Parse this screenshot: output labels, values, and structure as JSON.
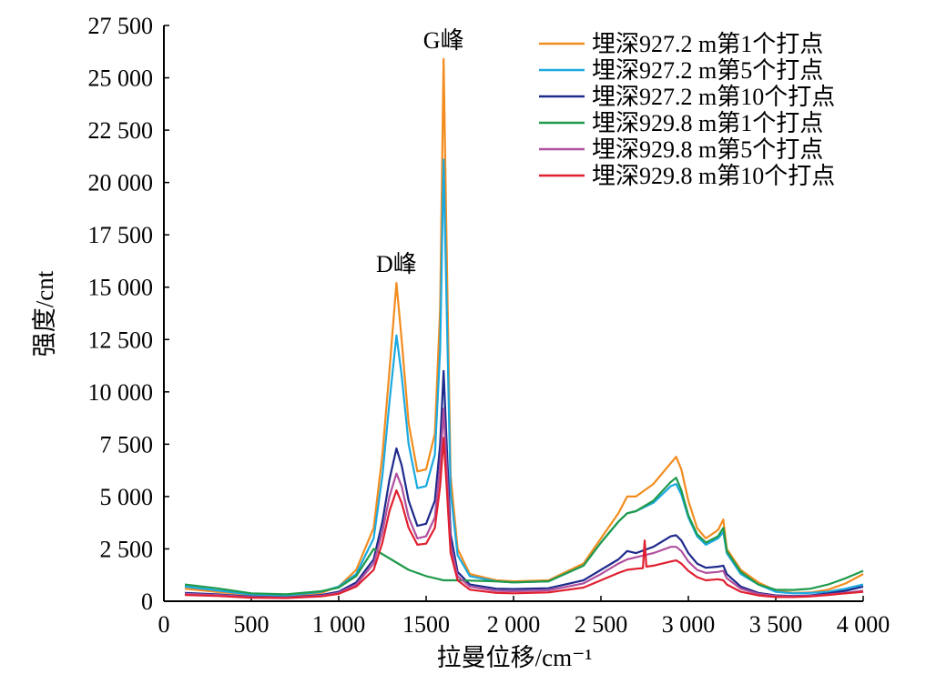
{
  "chart_data": {
    "type": "line",
    "title": "",
    "xlabel": "拉曼位移/cm⁻¹",
    "ylabel": "强度/cnt",
    "xlim": [
      0,
      4000
    ],
    "ylim": [
      0,
      27500
    ],
    "xticks": [
      0,
      500,
      1000,
      1500,
      2000,
      2500,
      3000,
      3500,
      4000
    ],
    "xtick_labels": [
      "0",
      "500",
      "1 000",
      "1500",
      "2 000",
      "2 500",
      "3 000",
      "3 500",
      "4 000"
    ],
    "yticks": [
      0,
      2500,
      5000,
      7500,
      10000,
      12500,
      15000,
      17500,
      20000,
      22500,
      25000,
      27500
    ],
    "ytick_labels": [
      "0",
      "2 500",
      "5 000",
      "7 500",
      "10 000",
      "12 500",
      "15 000",
      "17 500",
      "20 000",
      "22 500",
      "25 000",
      "27 500"
    ],
    "grid": false,
    "legend_position": "top-right",
    "annotations": [
      {
        "text": "D峰",
        "x": 1330,
        "y": 15200
      },
      {
        "text": "G峰",
        "x": 1600,
        "y": 25900
      }
    ],
    "series": [
      {
        "name": "埋深927.2 m第1个打点",
        "color": "#F28C1E",
        "points": [
          [
            120,
            600
          ],
          [
            300,
            450
          ],
          [
            500,
            300
          ],
          [
            700,
            250
          ],
          [
            900,
            400
          ],
          [
            1000,
            700
          ],
          [
            1100,
            1500
          ],
          [
            1200,
            3500
          ],
          [
            1250,
            7000
          ],
          [
            1290,
            11000
          ],
          [
            1330,
            15200
          ],
          [
            1360,
            12500
          ],
          [
            1400,
            8500
          ],
          [
            1450,
            6200
          ],
          [
            1500,
            6300
          ],
          [
            1550,
            8000
          ],
          [
            1580,
            14000
          ],
          [
            1600,
            25900
          ],
          [
            1615,
            18000
          ],
          [
            1640,
            6000
          ],
          [
            1680,
            2500
          ],
          [
            1750,
            1300
          ],
          [
            1900,
            1000
          ],
          [
            2000,
            950
          ],
          [
            2200,
            1000
          ],
          [
            2400,
            1800
          ],
          [
            2500,
            3000
          ],
          [
            2600,
            4200
          ],
          [
            2650,
            5000
          ],
          [
            2700,
            5000
          ],
          [
            2800,
            5600
          ],
          [
            2900,
            6600
          ],
          [
            2930,
            6900
          ],
          [
            2960,
            6300
          ],
          [
            3000,
            4800
          ],
          [
            3050,
            3500
          ],
          [
            3100,
            3000
          ],
          [
            3170,
            3400
          ],
          [
            3200,
            3900
          ],
          [
            3220,
            2500
          ],
          [
            3300,
            1500
          ],
          [
            3400,
            900
          ],
          [
            3500,
            500
          ],
          [
            3600,
            400
          ],
          [
            3700,
            420
          ],
          [
            3800,
            550
          ],
          [
            3900,
            850
          ],
          [
            4000,
            1300
          ]
        ]
      },
      {
        "name": "埋深927.2 m第5个打点",
        "color": "#1AA9E0",
        "points": [
          [
            120,
            700
          ],
          [
            300,
            520
          ],
          [
            500,
            320
          ],
          [
            700,
            280
          ],
          [
            900,
            450
          ],
          [
            1000,
            700
          ],
          [
            1100,
            1300
          ],
          [
            1200,
            3000
          ],
          [
            1250,
            6000
          ],
          [
            1290,
            9500
          ],
          [
            1330,
            12700
          ],
          [
            1360,
            10800
          ],
          [
            1400,
            7500
          ],
          [
            1450,
            5400
          ],
          [
            1500,
            5500
          ],
          [
            1550,
            7000
          ],
          [
            1580,
            12000
          ],
          [
            1600,
            21100
          ],
          [
            1615,
            15000
          ],
          [
            1640,
            5200
          ],
          [
            1680,
            2200
          ],
          [
            1750,
            1200
          ],
          [
            1900,
            950
          ],
          [
            2000,
            900
          ],
          [
            2200,
            950
          ],
          [
            2400,
            1700
          ],
          [
            2500,
            2800
          ],
          [
            2600,
            3800
          ],
          [
            2650,
            4200
          ],
          [
            2700,
            4300
          ],
          [
            2800,
            4700
          ],
          [
            2900,
            5500
          ],
          [
            2930,
            5600
          ],
          [
            2960,
            5100
          ],
          [
            3000,
            4000
          ],
          [
            3050,
            3100
          ],
          [
            3100,
            2700
          ],
          [
            3170,
            3000
          ],
          [
            3200,
            3300
          ],
          [
            3220,
            2300
          ],
          [
            3300,
            1300
          ],
          [
            3400,
            800
          ],
          [
            3500,
            450
          ],
          [
            3600,
            380
          ],
          [
            3700,
            400
          ],
          [
            3800,
            450
          ],
          [
            3900,
            600
          ],
          [
            4000,
            800
          ]
        ]
      },
      {
        "name": "埋深927.2 m第10个打点",
        "color": "#1E2A8C",
        "points": [
          [
            120,
            400
          ],
          [
            300,
            330
          ],
          [
            500,
            220
          ],
          [
            700,
            180
          ],
          [
            900,
            300
          ],
          [
            1000,
            450
          ],
          [
            1100,
            900
          ],
          [
            1200,
            2000
          ],
          [
            1250,
            3800
          ],
          [
            1290,
            5800
          ],
          [
            1330,
            7300
          ],
          [
            1360,
            6500
          ],
          [
            1400,
            4800
          ],
          [
            1450,
            3600
          ],
          [
            1500,
            3700
          ],
          [
            1550,
            4800
          ],
          [
            1580,
            7500
          ],
          [
            1600,
            11000
          ],
          [
            1615,
            8000
          ],
          [
            1640,
            3200
          ],
          [
            1680,
            1400
          ],
          [
            1750,
            800
          ],
          [
            1900,
            600
          ],
          [
            2000,
            580
          ],
          [
            2200,
            620
          ],
          [
            2400,
            1000
          ],
          [
            2500,
            1500
          ],
          [
            2600,
            2000
          ],
          [
            2650,
            2400
          ],
          [
            2700,
            2300
          ],
          [
            2800,
            2600
          ],
          [
            2900,
            3100
          ],
          [
            2930,
            3150
          ],
          [
            2960,
            2900
          ],
          [
            3000,
            2300
          ],
          [
            3050,
            1800
          ],
          [
            3100,
            1600
          ],
          [
            3170,
            1650
          ],
          [
            3200,
            1700
          ],
          [
            3220,
            1300
          ],
          [
            3300,
            700
          ],
          [
            3400,
            400
          ],
          [
            3500,
            280
          ],
          [
            3600,
            250
          ],
          [
            3700,
            280
          ],
          [
            3800,
            380
          ],
          [
            3900,
            500
          ],
          [
            4000,
            700
          ]
        ]
      },
      {
        "name": "埋深929.8 m第1个打点",
        "color": "#1E9A4A",
        "points": [
          [
            120,
            800
          ],
          [
            300,
            620
          ],
          [
            500,
            380
          ],
          [
            700,
            330
          ],
          [
            900,
            480
          ],
          [
            1000,
            650
          ],
          [
            1100,
            1200
          ],
          [
            1200,
            2500
          ],
          [
            1400,
            1500
          ],
          [
            1500,
            1200
          ],
          [
            1550,
            1100
          ],
          [
            1600,
            1000
          ],
          [
            1700,
            1000
          ],
          [
            1900,
            950
          ],
          [
            2000,
            900
          ],
          [
            2200,
            950
          ],
          [
            2400,
            1700
          ],
          [
            2500,
            2800
          ],
          [
            2600,
            3800
          ],
          [
            2650,
            4200
          ],
          [
            2700,
            4300
          ],
          [
            2800,
            4800
          ],
          [
            2900,
            5700
          ],
          [
            2930,
            5900
          ],
          [
            2960,
            5300
          ],
          [
            3000,
            4100
          ],
          [
            3050,
            3200
          ],
          [
            3100,
            2800
          ],
          [
            3170,
            3100
          ],
          [
            3200,
            3500
          ],
          [
            3220,
            2400
          ],
          [
            3300,
            1400
          ],
          [
            3400,
            800
          ],
          [
            3500,
            550
          ],
          [
            3600,
            540
          ],
          [
            3700,
            600
          ],
          [
            3800,
            800
          ],
          [
            3900,
            1100
          ],
          [
            4000,
            1450
          ]
        ]
      },
      {
        "name": "埋深929.8 m第5个打点",
        "color": "#B0509E",
        "points": [
          [
            120,
            350
          ],
          [
            300,
            300
          ],
          [
            500,
            200
          ],
          [
            700,
            170
          ],
          [
            900,
            260
          ],
          [
            1000,
            400
          ],
          [
            1100,
            800
          ],
          [
            1200,
            1800
          ],
          [
            1250,
            3300
          ],
          [
            1290,
            5000
          ],
          [
            1330,
            6100
          ],
          [
            1360,
            5500
          ],
          [
            1400,
            4000
          ],
          [
            1450,
            3000
          ],
          [
            1500,
            3100
          ],
          [
            1550,
            4000
          ],
          [
            1580,
            6500
          ],
          [
            1600,
            9200
          ],
          [
            1615,
            6800
          ],
          [
            1640,
            2700
          ],
          [
            1680,
            1200
          ],
          [
            1750,
            700
          ],
          [
            1900,
            500
          ],
          [
            2000,
            480
          ],
          [
            2200,
            520
          ],
          [
            2400,
            850
          ],
          [
            2500,
            1300
          ],
          [
            2600,
            1800
          ],
          [
            2650,
            2000
          ],
          [
            2700,
            2100
          ],
          [
            2800,
            2300
          ],
          [
            2900,
            2600
          ],
          [
            2930,
            2600
          ],
          [
            2960,
            2400
          ],
          [
            3000,
            1900
          ],
          [
            3050,
            1500
          ],
          [
            3100,
            1350
          ],
          [
            3170,
            1400
          ],
          [
            3200,
            1450
          ],
          [
            3220,
            1100
          ],
          [
            3300,
            600
          ],
          [
            3400,
            350
          ],
          [
            3500,
            250
          ],
          [
            3600,
            230
          ],
          [
            3700,
            250
          ],
          [
            3800,
            320
          ],
          [
            3900,
            400
          ],
          [
            4000,
            500
          ]
        ]
      },
      {
        "name": "埋深929.8 m第10个打点",
        "color": "#E02030",
        "points": [
          [
            120,
            300
          ],
          [
            300,
            250
          ],
          [
            500,
            170
          ],
          [
            700,
            150
          ],
          [
            900,
            230
          ],
          [
            1000,
            350
          ],
          [
            1100,
            700
          ],
          [
            1200,
            1500
          ],
          [
            1250,
            2800
          ],
          [
            1290,
            4300
          ],
          [
            1330,
            5300
          ],
          [
            1360,
            4700
          ],
          [
            1400,
            3500
          ],
          [
            1450,
            2700
          ],
          [
            1500,
            2750
          ],
          [
            1550,
            3500
          ],
          [
            1580,
            5500
          ],
          [
            1600,
            7800
          ],
          [
            1615,
            5800
          ],
          [
            1640,
            2300
          ],
          [
            1680,
            1000
          ],
          [
            1750,
            550
          ],
          [
            1900,
            400
          ],
          [
            2000,
            380
          ],
          [
            2200,
            420
          ],
          [
            2400,
            650
          ],
          [
            2500,
            1000
          ],
          [
            2600,
            1350
          ],
          [
            2650,
            1500
          ],
          [
            2700,
            1550
          ],
          [
            2740,
            1580
          ],
          [
            2750,
            2900
          ],
          [
            2760,
            1650
          ],
          [
            2800,
            1700
          ],
          [
            2900,
            1900
          ],
          [
            2930,
            1950
          ],
          [
            2960,
            1800
          ],
          [
            3000,
            1450
          ],
          [
            3050,
            1150
          ],
          [
            3100,
            1000
          ],
          [
            3170,
            1050
          ],
          [
            3200,
            1000
          ],
          [
            3220,
            800
          ],
          [
            3300,
            450
          ],
          [
            3400,
            280
          ],
          [
            3500,
            200
          ],
          [
            3600,
            200
          ],
          [
            3700,
            230
          ],
          [
            3800,
            300
          ],
          [
            3900,
            380
          ],
          [
            4000,
            450
          ]
        ]
      }
    ]
  }
}
